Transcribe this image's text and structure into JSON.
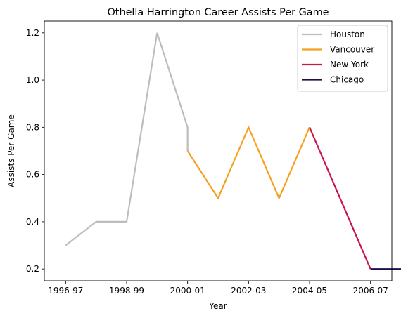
{
  "chart_data": {
    "type": "line",
    "title": "Othella Harrington Career Assists Per Game",
    "xlabel": "Year",
    "ylabel": "Assists Per Game",
    "x_tick_labels": [
      "1996-97",
      "1998-99",
      "2000-01",
      "2002-03",
      "2004-05",
      "2006-07"
    ],
    "x_ticks": [
      0,
      2,
      4,
      6,
      8,
      10
    ],
    "y_ticks": [
      0.2,
      0.4,
      0.6,
      0.8,
      1.0,
      1.2
    ],
    "y_tick_labels": [
      "0.2",
      "0.4",
      "0.6",
      "0.8",
      "1.0",
      "1.2"
    ],
    "xlim": [
      -0.7,
      10.7
    ],
    "ylim": [
      0.15,
      1.25
    ],
    "grid": false,
    "legend_position": "top-right",
    "series": [
      {
        "name": "Houston",
        "color": "#bdbdbd",
        "points": [
          [
            0,
            0.3
          ],
          [
            1,
            0.4
          ],
          [
            2,
            0.4
          ],
          [
            3,
            1.2
          ],
          [
            4,
            0.8
          ],
          [
            4,
            0.7
          ]
        ]
      },
      {
        "name": "Vancouver",
        "color": "#f5a01f",
        "points": [
          [
            4,
            0.7
          ],
          [
            5,
            0.5
          ],
          [
            6,
            0.8
          ],
          [
            7,
            0.5
          ],
          [
            8,
            0.8
          ]
        ]
      },
      {
        "name": "New York",
        "color": "#c8174a",
        "points": [
          [
            8,
            0.8
          ],
          [
            10,
            0.2
          ]
        ]
      },
      {
        "name": "Chicago",
        "color": "#1c0f4f",
        "points": [
          [
            10,
            0.2
          ],
          [
            11,
            0.2
          ]
        ]
      }
    ]
  }
}
